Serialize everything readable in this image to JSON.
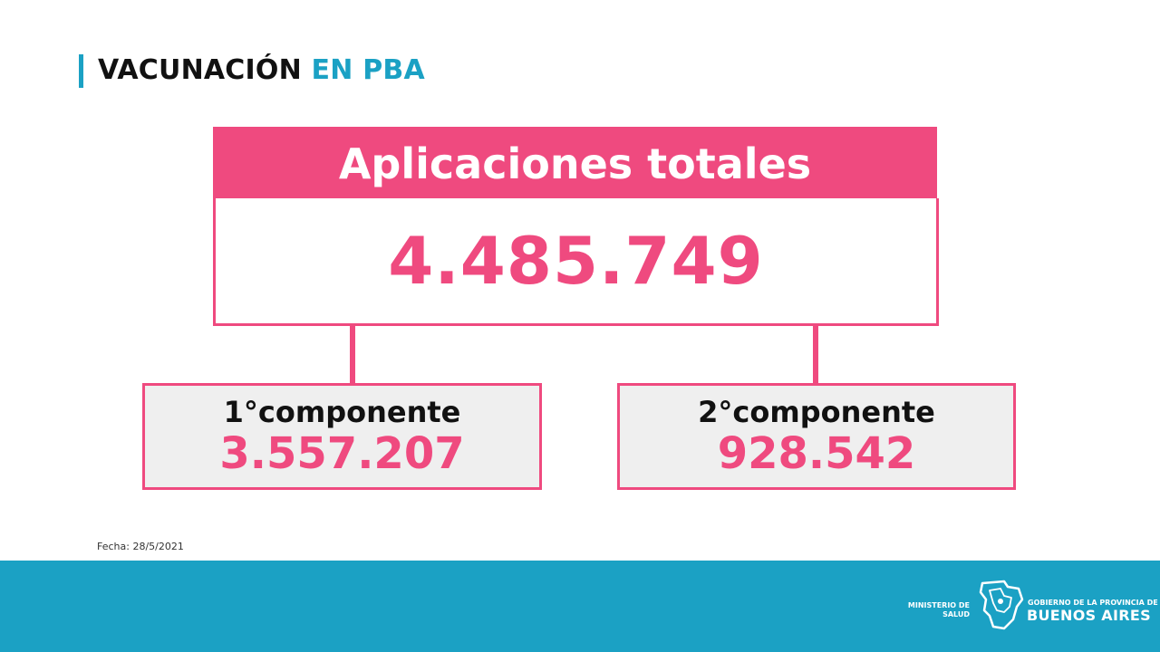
{
  "header": {
    "title_main": "VACUNACIÓN",
    "title_accent": "EN PBA"
  },
  "total": {
    "label": "Aplicaciones totales",
    "value": "4.485.749"
  },
  "components": [
    {
      "label": "1°componente",
      "value": "3.557.207"
    },
    {
      "label": "2°componente",
      "value": "928.542"
    }
  ],
  "fecha": "Fecha: 28/5/2021",
  "footer": {
    "ministerio": "MINISTERIO DE SALUD",
    "gobierno_small": "GOBIERNO DE LA PROVINCIA DE",
    "gobierno_big": "BUENOS AIRES"
  },
  "colors": {
    "pink": "#ef4a7f",
    "cyan": "#1ba1c4",
    "box_gray": "#efefef"
  }
}
